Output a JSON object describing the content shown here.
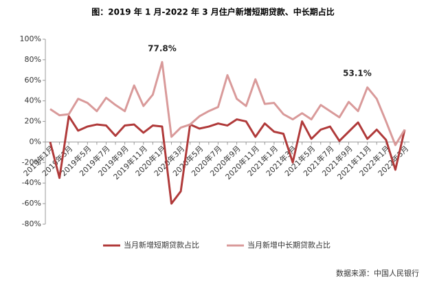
{
  "chart_data": {
    "type": "line",
    "title": "图：2019 年 1 月-2022 年 3 月住户新增短期贷款、中长期占比",
    "categories": [
      "2019年1月",
      null,
      "2019年3月",
      null,
      "2019年5月",
      null,
      "2019年7月",
      null,
      "2019年9月",
      null,
      "2019年11月",
      null,
      "2020年1月",
      null,
      "2020年3月",
      null,
      "2020年5月",
      null,
      "2020年7月",
      null,
      "2020年9月",
      null,
      "2020年11月",
      null,
      "2021年1月",
      null,
      "2021年3月",
      null,
      "2021年5月",
      null,
      "2021年7月",
      null,
      "2021年9月",
      null,
      "2021年11月",
      null,
      "2022年1月",
      null,
      "2022年3月"
    ],
    "series": [
      {
        "name": "当月新增短期贷款占比",
        "color": "#b03a3a",
        "values": [
          0,
          -35,
          25,
          11,
          15,
          17,
          16,
          6,
          16,
          17,
          9,
          16,
          15,
          -60,
          -48,
          17,
          13,
          15,
          18,
          16,
          22,
          20,
          5,
          18,
          10,
          8,
          -20,
          20,
          3,
          12,
          15,
          1,
          10,
          19,
          3,
          12,
          2,
          -27,
          12
        ]
      },
      {
        "name": "当月新增中长期贷款占比",
        "color": "#d99a9a",
        "values": [
          32,
          26,
          27,
          42,
          38,
          30,
          43,
          36,
          30,
          55,
          35,
          46,
          77.8,
          5,
          14,
          17,
          25,
          30,
          34,
          65,
          42,
          35,
          61,
          37,
          38,
          27,
          22,
          28,
          22,
          36,
          30,
          24,
          39,
          30,
          53.1,
          42,
          20,
          -3,
          12
        ]
      }
    ],
    "ylim": [
      -80,
      100
    ],
    "yticks": [
      {
        "value": -80,
        "label": "-80%"
      },
      {
        "value": -60,
        "label": "-60%"
      },
      {
        "value": -40,
        "label": "-40%"
      },
      {
        "value": -20,
        "label": "-20%"
      },
      {
        "value": 0,
        "label": "0%"
      },
      {
        "value": 20,
        "label": "20%"
      },
      {
        "value": 40,
        "label": "40%"
      },
      {
        "value": 60,
        "label": "60%"
      },
      {
        "value": 80,
        "label": "80%"
      },
      {
        "value": 100,
        "label": "100%"
      }
    ],
    "annotations": [
      "77.8%",
      "53.1%"
    ],
    "source": "数据来源：中国人民银行"
  }
}
